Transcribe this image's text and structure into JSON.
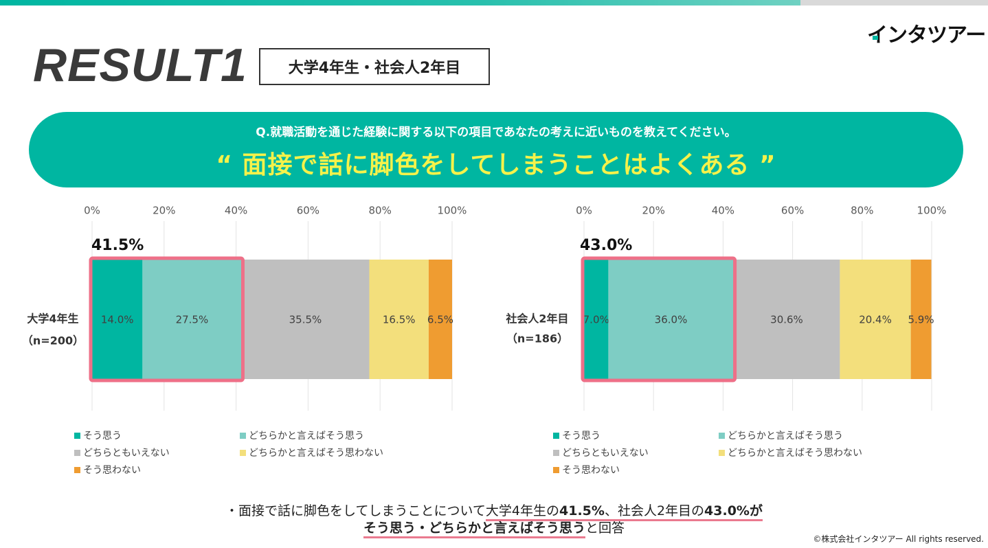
{
  "brand": {
    "logo_text": "インタツアー",
    "accent": "#00b6a1",
    "highlight": "#f5f24a",
    "frame": "#ee7088"
  },
  "header": {
    "title": "RESULT1",
    "segment_label": "大学4年生・社会人2年目"
  },
  "question": {
    "text": "Q.就職活動を通じた経験に関する以下の項目であなたの考えに近いものを教えてください。",
    "statement": "“ 面接で話に脚色をしてしまうことはよくある ”"
  },
  "chart_data": [
    {
      "type": "bar",
      "orientation": "horizontal-stacked-100",
      "categories": [
        "大学4年生（n=200）"
      ],
      "category_label": "大学4年生",
      "n_label": "（n=200）",
      "xlim": [
        0,
        100
      ],
      "ticks": [
        "0%",
        "20%",
        "40%",
        "60%",
        "80%",
        "100%"
      ],
      "series": [
        {
          "name": "そう思う",
          "values": [
            14.0
          ],
          "label": "14.0%",
          "color": "#00b6a1"
        },
        {
          "name": "どちらかと言えばそう思う",
          "values": [
            27.5
          ],
          "label": "27.5%",
          "color": "#7ecdc4"
        },
        {
          "name": "どちらともいえない",
          "values": [
            35.5
          ],
          "label": "35.5%",
          "color": "#bfbfbf"
        },
        {
          "name": "どちらかと言えばそう思わない",
          "values": [
            16.5
          ],
          "label": "16.5%",
          "color": "#f3df7c"
        },
        {
          "name": "そう思わない",
          "values": [
            6.5
          ],
          "label": "6.5%",
          "color": "#ef9c31"
        }
      ],
      "highlight_total": "41.5%"
    },
    {
      "type": "bar",
      "orientation": "horizontal-stacked-100",
      "categories": [
        "社会人2年目（n=186）"
      ],
      "category_label": "社会人2年目",
      "n_label": "（n=186）",
      "xlim": [
        0,
        100
      ],
      "ticks": [
        "0%",
        "20%",
        "40%",
        "60%",
        "80%",
        "100%"
      ],
      "series": [
        {
          "name": "そう思う",
          "values": [
            7.0
          ],
          "label": "7.0%",
          "color": "#00b6a1"
        },
        {
          "name": "どちらかと言えばそう思う",
          "values": [
            36.0
          ],
          "label": "36.0%",
          "color": "#7ecdc4"
        },
        {
          "name": "どちらともいえない",
          "values": [
            30.6
          ],
          "label": "30.6%",
          "color": "#bfbfbf"
        },
        {
          "name": "どちらかと言えばそう思わない",
          "values": [
            20.4
          ],
          "label": "20.4%",
          "color": "#f3df7c"
        },
        {
          "name": "そう思わない",
          "values": [
            5.9
          ],
          "label": "5.9%",
          "color": "#ef9c31"
        }
      ],
      "highlight_total": "43.0%"
    }
  ],
  "summary": {
    "prefix": "・面接で話に脚色をしてしまうことについて",
    "part_a": "大学4年生の",
    "value_a": "41.5%",
    "sep": "、社会人2年目の",
    "value_b": "43.0%が",
    "line2_bold": "そう思う・どちらかと言えばそう思う",
    "line2_tail": "と回答"
  },
  "footer": {
    "copyright": "©株式会社インタツアー All rights reserved."
  }
}
